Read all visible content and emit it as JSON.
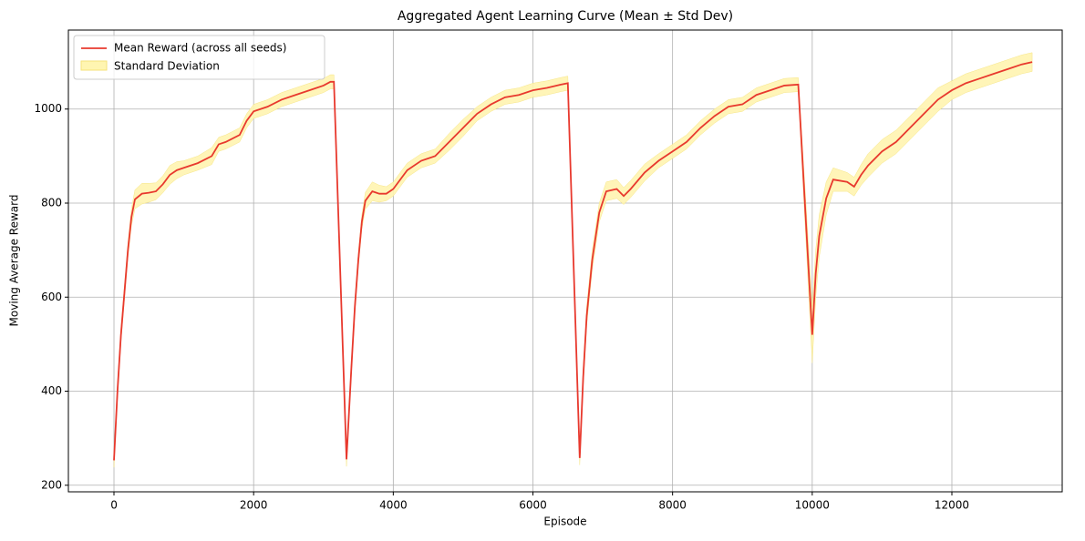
{
  "chart_data": {
    "type": "line",
    "title": "Aggregated Agent Learning Curve (Mean ± Std Dev)",
    "x_label": "Episode",
    "y_label": "Moving Average Reward",
    "x": [
      0,
      50,
      100,
      150,
      200,
      250,
      300,
      400,
      500,
      600,
      700,
      800,
      900,
      1000,
      1200,
      1400,
      1500,
      1600,
      1800,
      1900,
      2000,
      2200,
      2400,
      2600,
      2800,
      3000,
      3100,
      3150,
      3330,
      3400,
      3450,
      3500,
      3550,
      3600,
      3700,
      3800,
      3900,
      4000,
      4200,
      4400,
      4600,
      4800,
      5000,
      5200,
      5400,
      5600,
      5800,
      6000,
      6200,
      6400,
      6500,
      6670,
      6720,
      6770,
      6850,
      6950,
      7050,
      7200,
      7300,
      7400,
      7600,
      7800,
      8000,
      8200,
      8400,
      8600,
      8800,
      9000,
      9200,
      9400,
      9600,
      9800,
      10000,
      10050,
      10100,
      10200,
      10300,
      10500,
      10600,
      10700,
      10800,
      11000,
      11200,
      11400,
      11600,
      11800,
      12000,
      12200,
      12400,
      12600,
      12800,
      13000,
      13150
    ],
    "series": [
      {
        "name": "Mean Reward (across all seeds)",
        "color": "#e8392e",
        "values": [
          253,
          400,
          520,
          610,
          700,
          770,
          808,
          820,
          822,
          825,
          840,
          860,
          870,
          875,
          885,
          900,
          925,
          930,
          945,
          975,
          995,
          1005,
          1020,
          1030,
          1040,
          1050,
          1058,
          1058,
          255,
          450,
          580,
          680,
          760,
          805,
          825,
          820,
          820,
          830,
          870,
          890,
          900,
          930,
          960,
          990,
          1010,
          1025,
          1030,
          1040,
          1045,
          1052,
          1055,
          258,
          430,
          560,
          680,
          780,
          825,
          830,
          815,
          830,
          865,
          890,
          910,
          930,
          960,
          985,
          1005,
          1010,
          1030,
          1040,
          1050,
          1052,
          520,
          650,
          730,
          810,
          850,
          845,
          835,
          860,
          880,
          910,
          930,
          960,
          990,
          1020,
          1040,
          1055,
          1065,
          1075,
          1085,
          1095,
          1100
        ]
      },
      {
        "name": "Standard Deviation",
        "color": "#fff5b1",
        "values": [
          15,
          15,
          15,
          15,
          15,
          18,
          20,
          22,
          20,
          18,
          18,
          20,
          18,
          15,
          15,
          18,
          15,
          15,
          15,
          15,
          15,
          15,
          15,
          15,
          15,
          15,
          15,
          15,
          15,
          15,
          15,
          15,
          15,
          18,
          20,
          18,
          15,
          15,
          15,
          15,
          15,
          18,
          18,
          15,
          15,
          15,
          15,
          15,
          15,
          15,
          15,
          15,
          20,
          20,
          20,
          20,
          20,
          20,
          18,
          18,
          18,
          15,
          15,
          15,
          15,
          15,
          15,
          15,
          15,
          15,
          15,
          15,
          60,
          50,
          45,
          35,
          25,
          20,
          20,
          22,
          25,
          25,
          25,
          25,
          25,
          25,
          20,
          20,
          20,
          20,
          20,
          20,
          20
        ]
      }
    ],
    "xlim": [
      -653,
      13580
    ],
    "ylim": [
      186,
      1168
    ],
    "xticks": [
      0,
      2000,
      4000,
      6000,
      8000,
      10000,
      12000
    ],
    "yticks": [
      200,
      400,
      600,
      800,
      1000
    ],
    "grid": true,
    "legend": "upper left"
  }
}
